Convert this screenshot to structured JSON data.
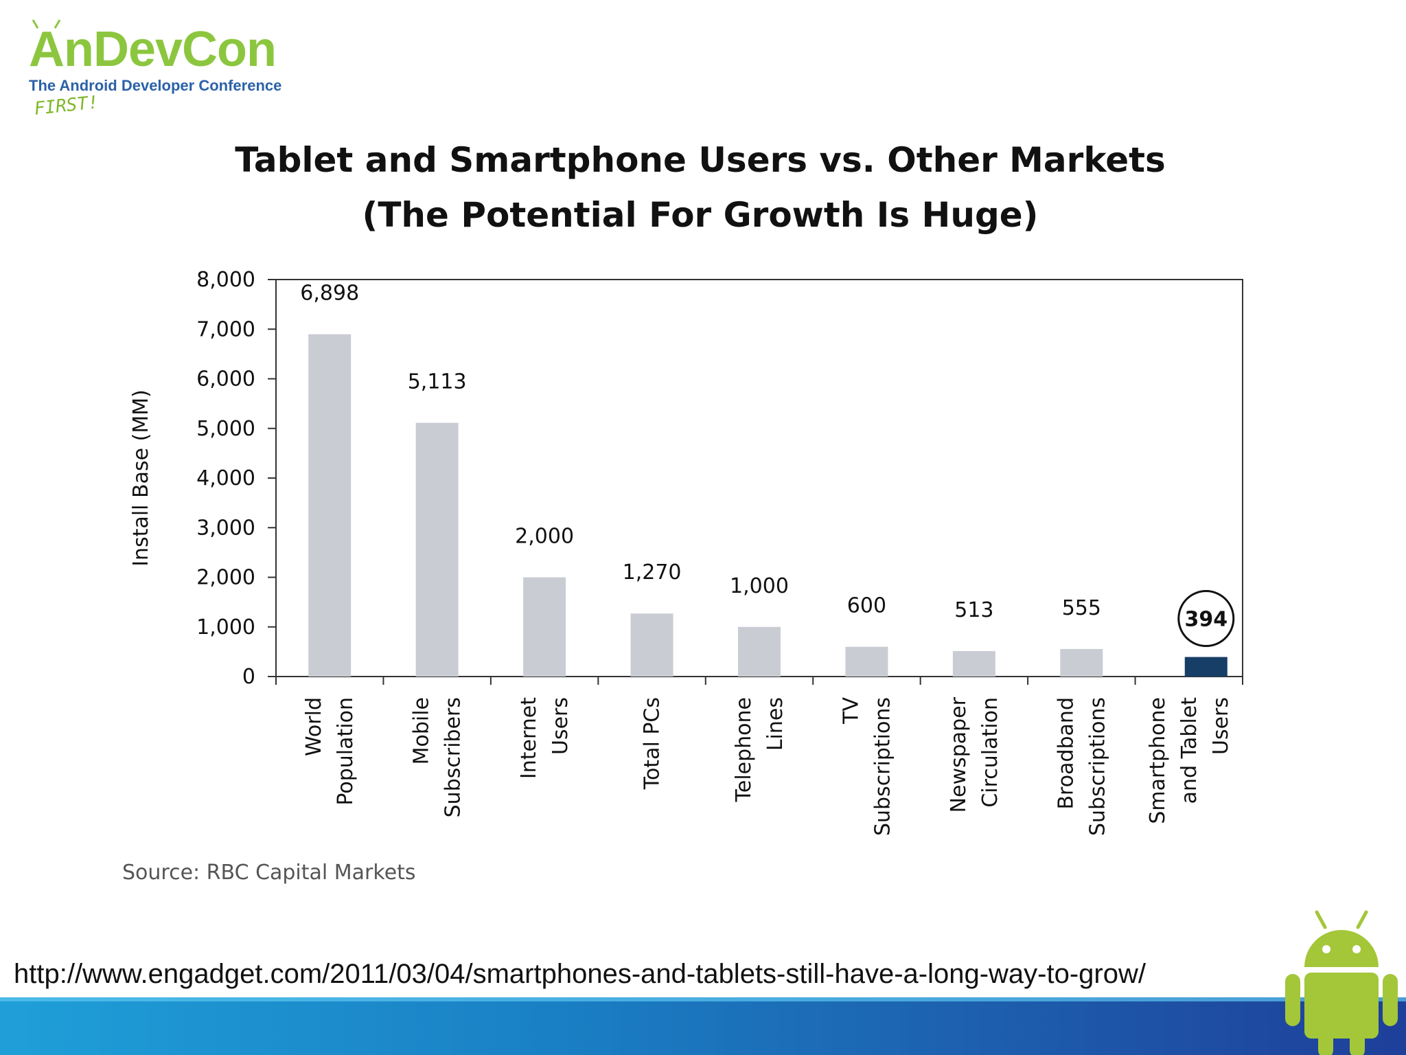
{
  "logo": {
    "title": "AnDevCon",
    "subtitle": "The Android Developer Conference",
    "tag": "FIRST!",
    "color": "#8cc63f",
    "subtitle_color": "#2b61a8"
  },
  "url": "http://www.engadget.com/2011/03/04/smartphones-and-tablets-still-have-a-long-way-to-grow/",
  "chart_data": {
    "type": "bar",
    "title": "Tablet and Smartphone Users vs. Other Markets",
    "subtitle": "(The Potential For Growth Is Huge)",
    "xlabel": "",
    "ylabel": "Install Base (MM)",
    "ylim": [
      0,
      8000
    ],
    "yticks": [
      "0",
      "1,000",
      "2,000",
      "3,000",
      "4,000",
      "5,000",
      "6,000",
      "7,000",
      "8,000"
    ],
    "ytick_values": [
      0,
      1000,
      2000,
      3000,
      4000,
      5000,
      6000,
      7000,
      8000
    ],
    "categories": [
      [
        "World",
        "Population"
      ],
      [
        "Mobile",
        "Subscribers"
      ],
      [
        "Internet",
        "Users"
      ],
      [
        "Total PCs"
      ],
      [
        "Telephone",
        "Lines"
      ],
      [
        "TV",
        "Subscriptions"
      ],
      [
        "Newspaper",
        "Circulation"
      ],
      [
        "Broadband",
        "Subscriptions"
      ],
      [
        "Smartphone",
        "and Tablet",
        "Users"
      ]
    ],
    "values": [
      6898,
      5113,
      2000,
      1270,
      1000,
      600,
      513,
      555,
      394
    ],
    "value_labels": [
      "6,898",
      "5,113",
      "2,000",
      "1,270",
      "1,000",
      "600",
      "513",
      "555",
      "394"
    ],
    "bar_colors": [
      "#c9ccd3",
      "#c9ccd3",
      "#c9ccd3",
      "#c9ccd3",
      "#c9ccd3",
      "#c9ccd3",
      "#c9ccd3",
      "#c9ccd3",
      "#173e66"
    ],
    "highlight_index": 8,
    "source": "Source: RBC Capital Markets",
    "grid": false
  },
  "mascot": {
    "color": "#a4c639"
  }
}
